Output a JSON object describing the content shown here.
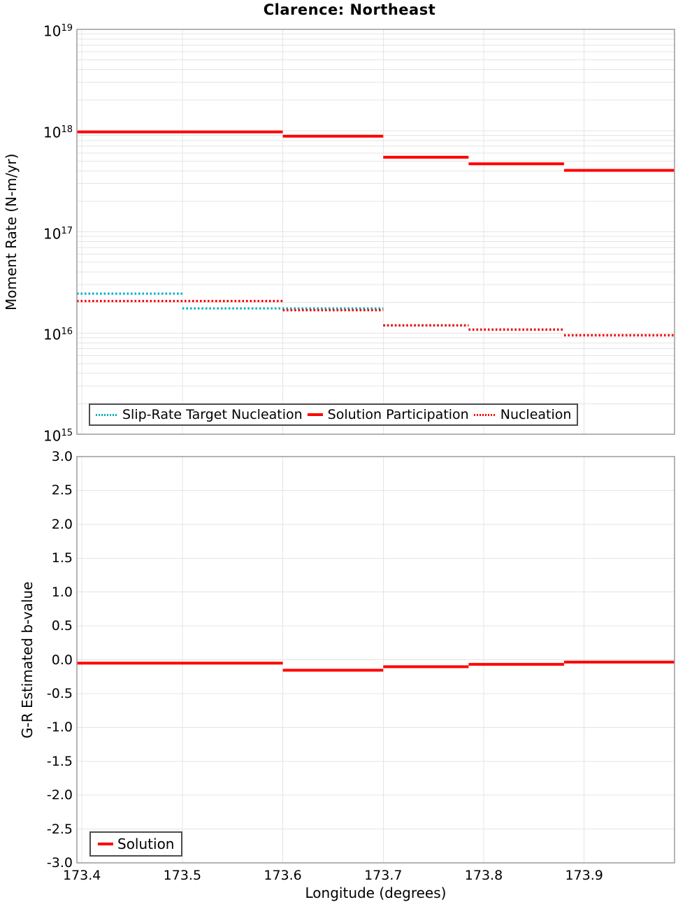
{
  "figure": {
    "title": "Clarence: Northeast",
    "xlabel": "Longitude (degrees)"
  },
  "colors": {
    "accent_red": "#ff0000",
    "accent_teal": "#00b2c3",
    "grid": "#e4e4e4",
    "panel_border": "#9b9b9b",
    "legend_border": "#4d4d4d",
    "text": "#000000",
    "background": "#ffffff"
  },
  "chart_data": [
    {
      "type": "line",
      "subtype": "step",
      "title": "Clarence: Northeast",
      "ylabel": "Moment Rate (N-m/yr)",
      "yscale": "log",
      "ylim": [
        1000000000000000.0,
        1e+19
      ],
      "ytick_exponents": [
        19,
        18,
        17,
        16,
        15
      ],
      "xlim": [
        173.395,
        173.99
      ],
      "xticks": [
        173.4,
        173.5,
        173.6,
        173.7,
        173.8,
        173.9
      ],
      "grid": true,
      "legend_position": "bottom-left-inside",
      "legend": [
        {
          "label": "Slip-Rate Target Nucleation",
          "color": "#00b2c3",
          "style": "dotted"
        },
        {
          "label": "Solution Participation",
          "color": "#ff0000",
          "style": "solid"
        },
        {
          "label": "Nucleation",
          "color": "#ff0000",
          "style": "dotted"
        }
      ],
      "series": [
        {
          "name": "Slip-Rate Target Nucleation",
          "color": "#00b2c3",
          "style": "dotted",
          "steps": [
            {
              "x0": 173.395,
              "x1": 173.5,
              "y": 2.45e+16
            },
            {
              "x0": 173.5,
              "x1": 173.7,
              "y": 1.75e+16
            },
            {
              "x0": 173.7,
              "x1": 173.785,
              "y": 1.19e+16
            },
            {
              "x0": 173.785,
              "x1": 173.88,
              "y": 1.08e+16
            },
            {
              "x0": 173.88,
              "x1": 173.99,
              "y": 9500000000000000.0
            }
          ]
        },
        {
          "name": "Nucleation",
          "color": "#ff0000",
          "style": "dotted",
          "steps": [
            {
              "x0": 173.395,
              "x1": 173.6,
              "y": 2.07e+16
            },
            {
              "x0": 173.6,
              "x1": 173.7,
              "y": 1.68e+16
            },
            {
              "x0": 173.7,
              "x1": 173.785,
              "y": 1.19e+16
            },
            {
              "x0": 173.785,
              "x1": 173.88,
              "y": 1.08e+16
            },
            {
              "x0": 173.88,
              "x1": 173.99,
              "y": 9500000000000000.0
            }
          ]
        },
        {
          "name": "Solution Participation",
          "color": "#ff0000",
          "style": "solid",
          "steps": [
            {
              "x0": 173.395,
              "x1": 173.6,
              "y": 9.7e+17
            },
            {
              "x0": 173.6,
              "x1": 173.7,
              "y": 8.8e+17
            },
            {
              "x0": 173.7,
              "x1": 173.785,
              "y": 5.45e+17
            },
            {
              "x0": 173.785,
              "x1": 173.88,
              "y": 4.7e+17
            },
            {
              "x0": 173.88,
              "x1": 173.99,
              "y": 4.05e+17
            }
          ]
        }
      ]
    },
    {
      "type": "line",
      "subtype": "step",
      "title": "",
      "ylabel": "G-R Estimated b-value",
      "yscale": "linear",
      "ylim": [
        -3.0,
        3.0
      ],
      "yticks": [
        "3.0",
        "2.5",
        "2.0",
        "1.5",
        "1.0",
        "0.5",
        "0.0",
        "-0.5",
        "-1.0",
        "-1.5",
        "-2.0",
        "-2.5",
        "-3.0"
      ],
      "xlim": [
        173.395,
        173.99
      ],
      "xticks": [
        173.4,
        173.5,
        173.6,
        173.7,
        173.8,
        173.9
      ],
      "xlabel": "Longitude (degrees)",
      "grid": true,
      "legend_position": "bottom-left-inside",
      "legend": [
        {
          "label": "Solution",
          "color": "#ff0000",
          "style": "solid"
        }
      ],
      "series": [
        {
          "name": "Solution",
          "color": "#ff0000",
          "style": "solid",
          "steps": [
            {
              "x0": 173.395,
              "x1": 173.6,
              "y": -0.05
            },
            {
              "x0": 173.6,
              "x1": 173.7,
              "y": -0.155
            },
            {
              "x0": 173.7,
              "x1": 173.785,
              "y": -0.103
            },
            {
              "x0": 173.785,
              "x1": 173.88,
              "y": -0.069
            },
            {
              "x0": 173.88,
              "x1": 173.99,
              "y": -0.035
            }
          ]
        }
      ]
    }
  ]
}
